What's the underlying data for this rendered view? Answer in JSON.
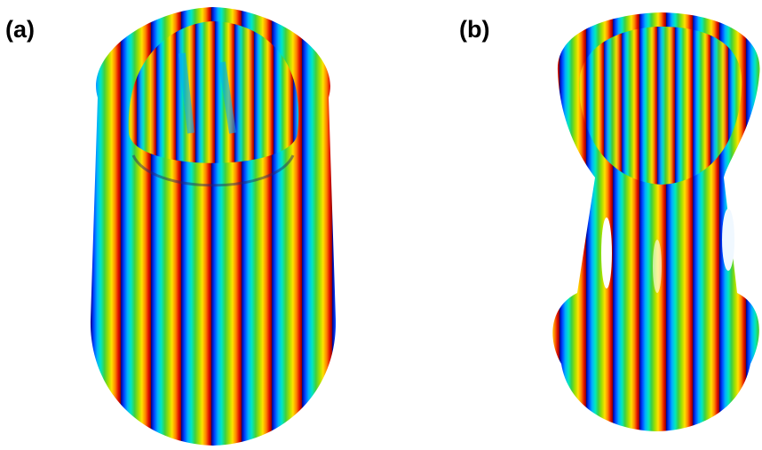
{
  "panels": [
    {
      "label": "(a)"
    },
    {
      "label": "(b)"
    }
  ],
  "colormap": [
    "#00008b",
    "#0040ff",
    "#00b0ff",
    "#00e8c0",
    "#40d040",
    "#a0e000",
    "#ffe000",
    "#ff8000",
    "#e01000",
    "#8b0000"
  ]
}
